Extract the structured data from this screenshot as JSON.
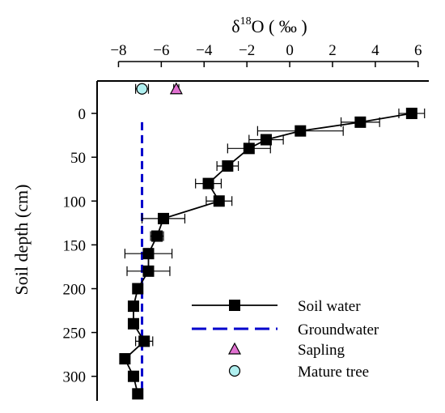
{
  "chart_data": {
    "type": "scatter",
    "title": "",
    "xlabel_base": "δ",
    "xlabel_sup": "18",
    "xlabel_rest": "O ( ‰ )",
    "ylabel": "Soil depth (cm)",
    "xlim": [
      -9.0,
      6.5
    ],
    "ylim": [
      -37,
      328
    ],
    "x_ticks": [
      -8,
      -6,
      -4,
      -2,
      0,
      2,
      4,
      6
    ],
    "y_ticks": [
      0,
      50,
      100,
      150,
      200,
      250,
      300
    ],
    "legend_position": "bottom-right",
    "colors": {
      "soil_water": "#000000",
      "groundwater": "#0000cc",
      "sapling": "#e070d0",
      "mature_tree": "#b0f0f0"
    },
    "series": [
      {
        "key": "soil_water",
        "name": "Soil water",
        "marker": "square",
        "points": [
          {
            "x": 5.7,
            "y": 0,
            "err": 0.6
          },
          {
            "x": 3.3,
            "y": 10,
            "err": 0.9
          },
          {
            "x": 0.5,
            "y": 20,
            "err": 2.0
          },
          {
            "x": -1.1,
            "y": 30,
            "err": 0.8
          },
          {
            "x": -1.9,
            "y": 40,
            "err": 1.0
          },
          {
            "x": -2.9,
            "y": 60,
            "err": 0.5
          },
          {
            "x": -3.8,
            "y": 80,
            "err": 0.6
          },
          {
            "x": -3.3,
            "y": 100,
            "err": 0.6
          },
          {
            "x": -5.9,
            "y": 120,
            "err": 1.0
          },
          {
            "x": -6.2,
            "y": 140,
            "err": 0.3
          },
          {
            "x": -6.6,
            "y": 160,
            "err": 1.1
          },
          {
            "x": -6.6,
            "y": 180,
            "err": 1.0
          },
          {
            "x": -7.1,
            "y": 200,
            "err": 0.2
          },
          {
            "x": -7.3,
            "y": 220,
            "err": 0.2
          },
          {
            "x": -7.3,
            "y": 240,
            "err": 0.2
          },
          {
            "x": -6.8,
            "y": 260,
            "err": 0.4
          },
          {
            "x": -7.7,
            "y": 280,
            "err": 0.2
          },
          {
            "x": -7.3,
            "y": 300,
            "err": 0.2
          },
          {
            "x": -7.1,
            "y": 320,
            "err": 0.2
          }
        ]
      },
      {
        "key": "groundwater",
        "name": "Groundwater",
        "marker": "dashed-line",
        "x": -6.9,
        "y_range": [
          10,
          325
        ]
      },
      {
        "key": "sapling",
        "name": "Sapling",
        "marker": "triangle",
        "points": [
          {
            "x": -5.3,
            "y": -28,
            "err": 0.12
          }
        ]
      },
      {
        "key": "mature_tree",
        "name": "Mature tree",
        "marker": "circle",
        "points": [
          {
            "x": -6.9,
            "y": -28,
            "err": 0.3
          }
        ]
      }
    ]
  }
}
